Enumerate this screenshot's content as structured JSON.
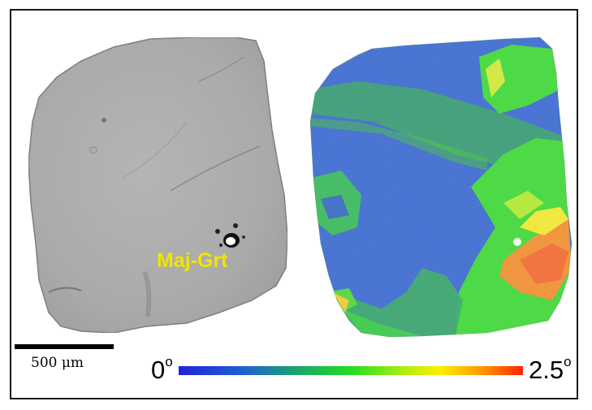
{
  "figure": {
    "left_image": {
      "label": "Maj-Grt"
    },
    "scale_bar": {
      "text": "500 μm"
    },
    "colorbar": {
      "min_label": "0",
      "max_label": "2.5",
      "unit_symbol": "o",
      "gradient_colors": [
        "#2222dd",
        "#1e66cc",
        "#1aa866",
        "#22dd22",
        "#aaee11",
        "#ffee00",
        "#ff9900",
        "#ff2200"
      ]
    }
  }
}
